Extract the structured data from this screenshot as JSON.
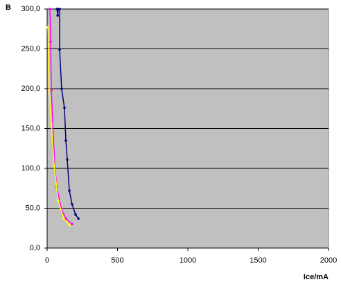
{
  "chart_data": {
    "type": "scatter-line",
    "panel_label": "B",
    "x_label": "Ice/mA",
    "xlim": [
      0,
      2000
    ],
    "xticks": [
      0,
      500,
      1000,
      1500,
      2000
    ],
    "ylim": [
      0,
      300
    ],
    "yticks": [
      {
        "value": 0,
        "label": "0,0"
      },
      {
        "value": 50,
        "label": "50,0"
      },
      {
        "value": 100,
        "label": "100,0"
      },
      {
        "value": 150,
        "label": "150,0"
      },
      {
        "value": 200,
        "label": "200,0"
      },
      {
        "value": 250,
        "label": "250,0"
      },
      {
        "value": 300,
        "label": "300,0"
      }
    ],
    "grid": true,
    "plot_background": "#c0c0c0",
    "series": [
      {
        "color": "#000080",
        "x": [
          70,
          75,
          80,
          89,
          89,
          103,
          123,
          133,
          143,
          158,
          177,
          202,
          222
        ],
        "values": [
          300,
          292,
          300,
          300,
          249,
          200,
          176,
          135,
          111,
          72,
          55,
          42,
          37
        ]
      },
      {
        "color": "#ff00ff",
        "x": [
          20,
          25,
          30,
          54,
          69,
          99,
          133,
          177
        ],
        "values": [
          300,
          259,
          198,
          103,
          77,
          50,
          37,
          30
        ]
      },
      {
        "color": "#ffff00",
        "x": [
          5,
          15,
          30,
          50,
          79,
          118,
          158
        ],
        "values": [
          277,
          198,
          155,
          103,
          59,
          37,
          29
        ]
      }
    ]
  }
}
